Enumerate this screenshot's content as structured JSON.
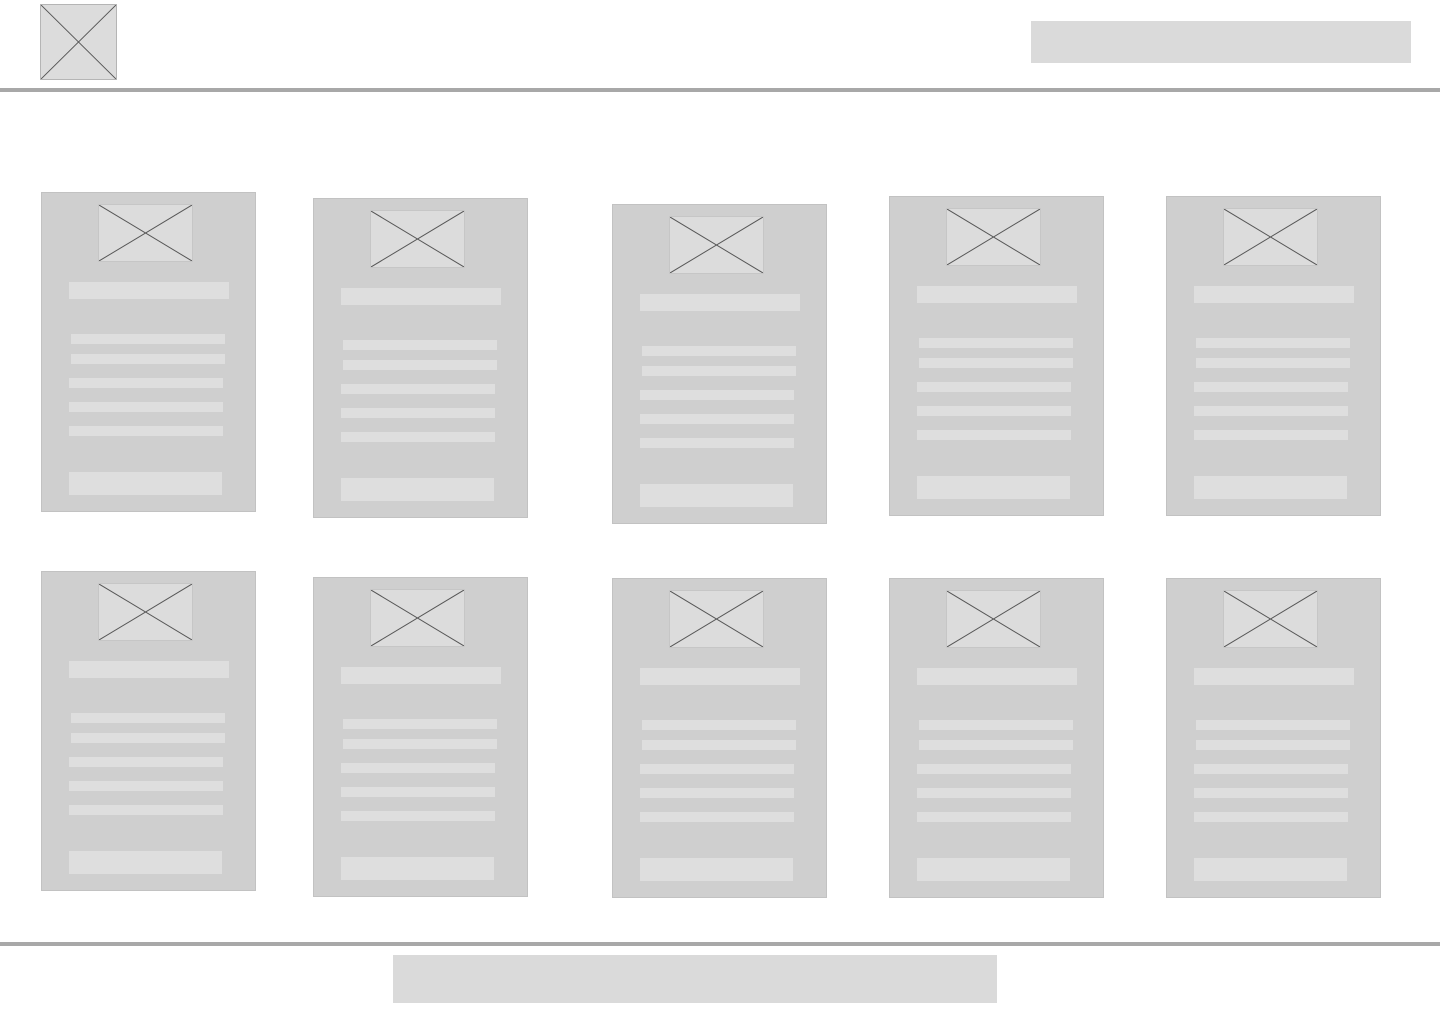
{
  "header": {
    "logo": {
      "icon": "image-placeholder-icon"
    },
    "search": {
      "value": ""
    }
  },
  "products": {
    "cards": [
      {
        "thumbnail_icon": "image-placeholder-icon"
      },
      {
        "thumbnail_icon": "image-placeholder-icon"
      },
      {
        "thumbnail_icon": "image-placeholder-icon"
      },
      {
        "thumbnail_icon": "image-placeholder-icon"
      },
      {
        "thumbnail_icon": "image-placeholder-icon"
      },
      {
        "thumbnail_icon": "image-placeholder-icon"
      },
      {
        "thumbnail_icon": "image-placeholder-icon"
      },
      {
        "thumbnail_icon": "image-placeholder-icon"
      },
      {
        "thumbnail_icon": "image-placeholder-icon"
      },
      {
        "thumbnail_icon": "image-placeholder-icon"
      }
    ]
  },
  "footer": {
    "bar": {
      "value": ""
    }
  },
  "colors": {
    "background": "#ffffff",
    "card": "#cfcfcf",
    "placeholder": "#dadada",
    "divider": "#a8a8a8"
  }
}
